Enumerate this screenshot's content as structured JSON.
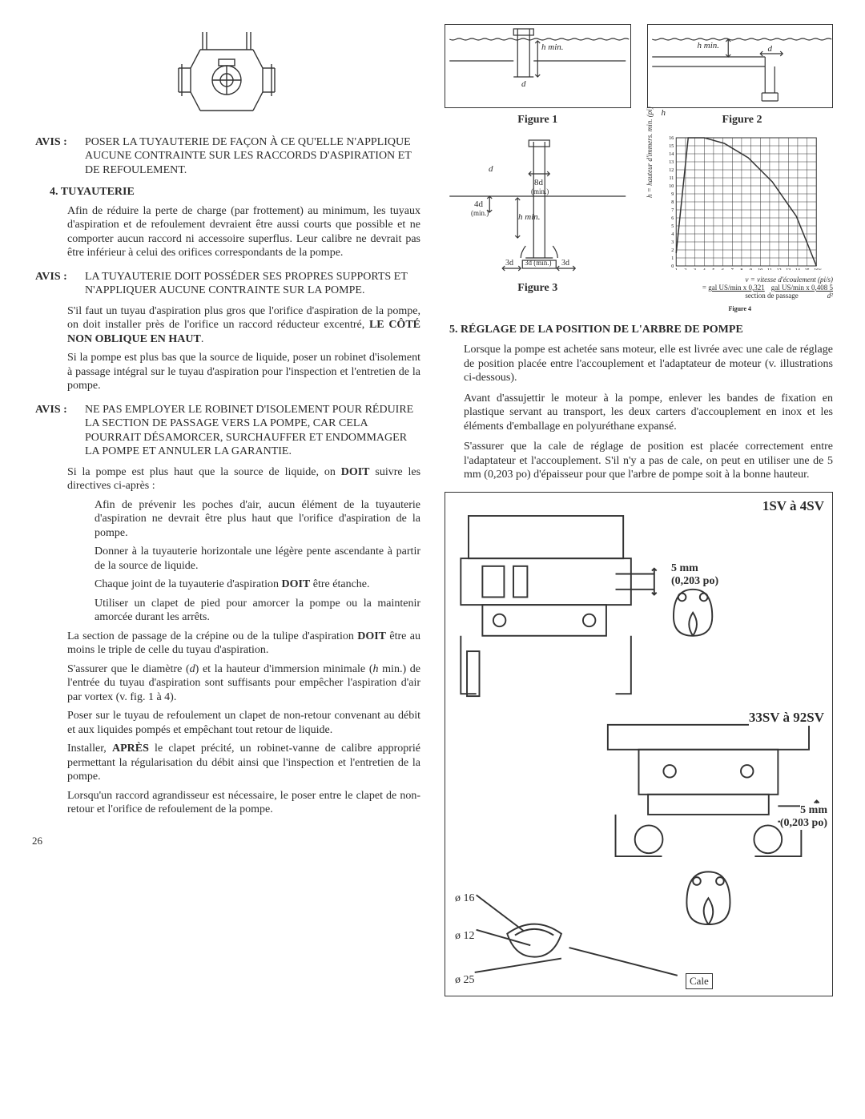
{
  "left": {
    "avis1": {
      "label": "AVIS :",
      "body": "POSER LA TUYAUTERIE DE FAÇON À CE QU'ELLE N'APPLIQUE AUCUNE CONTRAINTE SUR LES RACCORDS D'ASPIRATION ET DE REFOULEMENT."
    },
    "sec4": {
      "heading": "4. TUYAUTERIE",
      "p1": "Afin de réduire la perte de charge (par frottement) au minimum, les tuyaux d'aspiration et de refoulement devraient être aussi courts que possible et ne comporter aucun raccord ni accessoire superflus. Leur calibre ne devrait pas être inférieur à celui des orifices correspondants de la pompe."
    },
    "avis2": {
      "label": "AVIS :",
      "body": "LA TUYAUTERIE DOIT POSSÉDER SES PROPRES SUPPORTS ET N'APPLIQUER AUCUNE CONTRAINTE SUR LA POMPE."
    },
    "p2_part1": "S'il faut un tuyau d'aspiration plus gros que l'orifice d'aspiration de la pompe, on doit installer près de l'orifice un raccord réducteur excentré, ",
    "p2_bold": "LE CÔTÉ NON OBLIQUE EN HAUT",
    "p2_part2": ".",
    "p3": "Si la pompe est plus bas que la source de liquide, poser un robinet d'isolement à passage intégral sur le tuyau d'aspiration pour l'inspection et l'entretien de la pompe.",
    "avis3": {
      "label": "AVIS :",
      "body": "NE PAS EMPLOYER LE ROBINET D'ISOLEMENT POUR RÉDUIRE LA SECTION DE PASSAGE VERS LA POMPE, CAR CELA POURRAIT DÉSAMORCER, SURCHAUFFER ET ENDOMMAGER LA POMPE ET ANNULER LA GARANTIE."
    },
    "p4_part1": "Si la pompe est plus haut que la source de liquide, on ",
    "p4_bold": "DOIT",
    "p4_part2": " suivre les directives ci-après :",
    "b1": "Afin de prévenir les poches d'air, aucun élément de la tuyauterie d'aspiration ne devrait être plus haut que l'orifice d'aspiration de la pompe.",
    "b2": "Donner à la tuyauterie horizontale une légère pente ascendante à partir de la source de liquide.",
    "b3_part1": "Chaque joint de la tuyauterie d'aspiration ",
    "b3_bold": "DOIT",
    "b3_part2": " être étanche.",
    "b4": "Utiliser un clapet de pied pour amorcer la pompe ou la maintenir amorcée durant les arrêts.",
    "p5_part1": "La section de passage de la crépine ou de la tulipe d'aspiration ",
    "p5_bold": "DOIT",
    "p5_part2": " être au moins le triple de celle du tuyau d'aspiration.",
    "p6_part1": "S'assurer que le diamètre (",
    "p6_ital1": "d",
    "p6_part2": ") et la hauteur d'immersion minimale (",
    "p6_ital2": "h",
    "p6_part3": " min.) de l'entrée du tuyau d'aspiration sont suffisants pour empêcher l'aspiration d'air par vortex (v. fig. 1 à 4).",
    "p7": "Poser sur le tuyau de refoulement un clapet de non-retour convenant au débit et aux liquides pompés et empêchant tout retour de liquide.",
    "p8_part1": "Installer, ",
    "p8_bold": "APRÈS",
    "p8_part2": " le clapet précité, un robinet-vanne de calibre approprié permettant la régularisation du débit ainsi que l'inspection et l'entretien de la pompe.",
    "p9": "Lorsqu'un raccord agrandisseur est nécessaire, le poser entre le clapet de non-retour et l'orifice de refoulement de la pompe.",
    "pagenum": "26"
  },
  "right": {
    "fig1": {
      "caption": "Figure 1",
      "hmin": "h min.",
      "d": "d"
    },
    "fig2": {
      "caption": "Figure 2",
      "hmin": "h min.",
      "hlabel": "h",
      "d": "d"
    },
    "fig3": {
      "caption": "Figure 3",
      "d": "d",
      "d8": "8d",
      "d4": "4d",
      "d3a": "3d",
      "d3b": "3d",
      "min": "(min.)",
      "hmin": "h min.",
      "midlabel": "3d (min.)"
    },
    "fig4": {
      "caption": "Figure 4",
      "ylabel": "h = hauteur d'immers. min. (pi)",
      "yticks": [
        "0",
        "1",
        "2",
        "3",
        "4",
        "5",
        "6",
        "7",
        "8",
        "9",
        "10",
        "11",
        "12",
        "13",
        "14",
        "15",
        "16"
      ],
      "xticks": [
        "1",
        "2",
        "3",
        "4",
        "5",
        "6",
        "7",
        "8",
        "9",
        "10",
        "11",
        "12",
        "13",
        "14",
        "15",
        "16"
      ],
      "curve_points": [
        [
          0,
          16
        ],
        [
          15,
          160
        ],
        [
          35,
          160
        ],
        [
          60,
          153
        ],
        [
          90,
          135
        ],
        [
          120,
          105
        ],
        [
          150,
          62
        ],
        [
          165,
          25
        ],
        [
          175,
          0
        ]
      ],
      "grid_color": "#333",
      "curve_color": "#333",
      "background": "#ffffff",
      "vnote": "v",
      "vline": "v = vitesse d'écoulement (pi/s)",
      "eq_left": "gal US/min x 0,321",
      "eq_right": "gal US/min x 0,408 5",
      "eq_denom_left": "section de passage",
      "eq_denom_right": "d²"
    },
    "sec5": {
      "heading": "5. RÉGLAGE DE LA POSITION DE L'ARBRE DE POMPE",
      "p1": "Lorsque la pompe est achetée sans moteur, elle est livrée avec une cale de réglage de position placée entre l'accouplement et l'adaptateur de moteur (v. illustrations ci-dessous).",
      "p2": "Avant d'assujettir le moteur à la pompe, enlever les bandes de fixation en plastique servant au transport, les deux carters d'accouplement en inox et les éléments d'emballage en polyuréthane expansé.",
      "p3": "S'assurer que la cale de réglage de position est placée correctement entre l'adaptateur et l'accouplement. S'il n'y a pas de cale, on peut en utiliser une de 5 mm (0,203 po) d'épaisseur pour que l'arbre de pompe soit à la bonne hauteur."
    },
    "bd": {
      "top_label": "1SV à 4SV",
      "mid_label": "33SV à 92SV",
      "dim1": "5 mm",
      "dim1b": "(0,203 po)",
      "dim2": "5 mm",
      "dim2b": "(0,203 po)",
      "o16": "ø 16",
      "o12": "ø 12",
      "o25": "ø 25",
      "cale": "Cale"
    }
  }
}
